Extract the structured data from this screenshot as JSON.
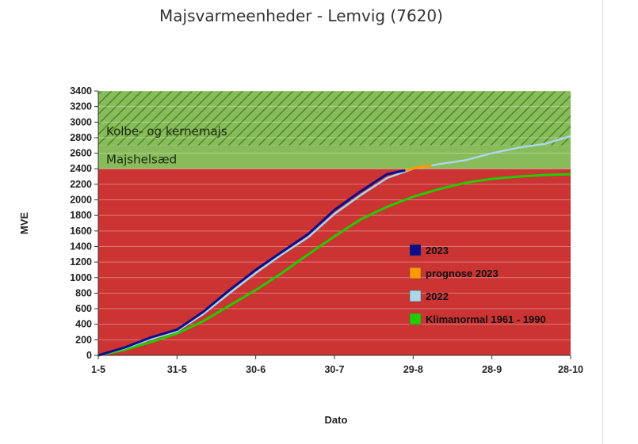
{
  "chart_data": {
    "type": "line",
    "title": "Majsvarmeenheder - Lemvig (7620)",
    "xlabel": "Dato",
    "ylabel": "MVE",
    "x_ticks": [
      "1-5",
      "31-5",
      "30-6",
      "30-7",
      "29-8",
      "28-9",
      "28-10"
    ],
    "y_ticks": [
      0,
      200,
      400,
      600,
      800,
      1000,
      1200,
      1400,
      1600,
      1800,
      2000,
      2200,
      2400,
      2600,
      2800,
      3000,
      3200,
      3400
    ],
    "ylim": [
      0,
      3400
    ],
    "x_unit": "days since 1-5",
    "xlim": [
      0,
      180
    ],
    "zones": [
      {
        "label": "",
        "from": 0,
        "to": 2400,
        "color": "#cc3333"
      },
      {
        "label": "Majshelsæd",
        "from": 2400,
        "to": 2700,
        "color": "#88bb5a"
      },
      {
        "label": "Kolbe- og kernemajs",
        "from": 2700,
        "to": 3400,
        "color": "#88bb5a",
        "hatched": true
      }
    ],
    "series": [
      {
        "name": "2023",
        "color": "#0d0d88",
        "x": [
          0,
          10,
          20,
          30,
          40,
          50,
          60,
          70,
          80,
          90,
          100,
          110,
          117
        ],
        "y": [
          0,
          100,
          230,
          330,
          560,
          840,
          1100,
          1330,
          1560,
          1870,
          2110,
          2330,
          2380
        ]
      },
      {
        "name": "prognose 2023",
        "color": "#ff9900",
        "x": [
          117,
          122,
          127
        ],
        "y": [
          2380,
          2420,
          2440
        ]
      },
      {
        "name": "2022",
        "color": "#a8d8ea",
        "x": [
          0,
          10,
          20,
          30,
          40,
          50,
          60,
          70,
          80,
          90,
          100,
          110,
          120,
          130,
          140,
          150,
          160,
          170,
          180
        ],
        "y": [
          0,
          90,
          210,
          310,
          530,
          800,
          1060,
          1300,
          1520,
          1820,
          2060,
          2280,
          2400,
          2460,
          2510,
          2600,
          2670,
          2720,
          2820
        ]
      },
      {
        "name": "Klimanormal 1961 - 1990",
        "color": "#22cc00",
        "x": [
          0,
          10,
          20,
          30,
          40,
          50,
          60,
          70,
          80,
          90,
          100,
          110,
          120,
          130,
          140,
          150,
          160,
          170,
          180
        ],
        "y": [
          0,
          70,
          170,
          280,
          440,
          640,
          840,
          1060,
          1300,
          1530,
          1750,
          1910,
          2040,
          2140,
          2220,
          2270,
          2300,
          2320,
          2330
        ]
      }
    ]
  }
}
